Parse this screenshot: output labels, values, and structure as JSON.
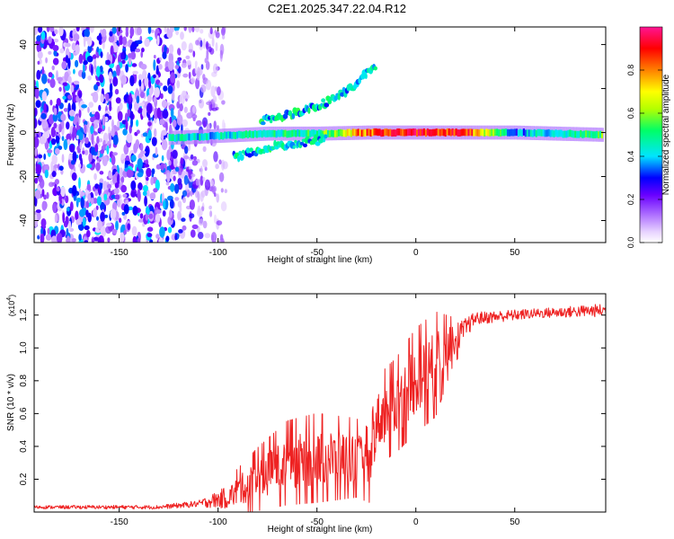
{
  "title": "C2E1.2025.347.22.04.R12",
  "chart_data": [
    {
      "type": "heatmap",
      "name": "spectrogram",
      "xlabel": "Height of straight line (km)",
      "ylabel": "Frequency (Hz)",
      "xlim": [
        -193,
        96
      ],
      "ylim": [
        -50,
        48
      ],
      "xticks": [
        -150,
        -100,
        -50,
        0,
        50
      ],
      "xtick_labels": [
        "-150",
        "-100",
        "-50",
        "0",
        "50"
      ],
      "yticks": [
        -40,
        -20,
        0,
        20,
        40
      ],
      "ytick_labels": [
        "-40",
        "-20",
        "0",
        "20",
        "40"
      ],
      "colorbar": {
        "label": "Normalized spectral amplitude",
        "range": [
          0,
          1
        ],
        "ticks": [
          0.0,
          0.2,
          0.4,
          0.6,
          0.8
        ],
        "tick_labels": [
          "0.0",
          "0.2",
          "0.4",
          "0.6",
          "0.8"
        ],
        "colormap": [
          "#ffffff",
          "#e7d2ff",
          "#b47aff",
          "#6a00ff",
          "#0000ff",
          "#00e5ff",
          "#00ff66",
          "#b4ff00",
          "#ffff00",
          "#ff8000",
          "#ff0000",
          "#ff1493"
        ]
      },
      "features": {
        "noise_region_km": [
          -193,
          -110
        ],
        "carrier_line": [
          {
            "x": -125,
            "f": -2.5,
            "amp": 0.45
          },
          {
            "x": -100,
            "f": -1.5,
            "amp": 0.42
          },
          {
            "x": -75,
            "f": -0.5,
            "amp": 0.45
          },
          {
            "x": -50,
            "f": -0.5,
            "amp": 0.5
          },
          {
            "x": -25,
            "f": 0,
            "amp": 0.8
          },
          {
            "x": 0,
            "f": 0,
            "amp": 0.9
          },
          {
            "x": 25,
            "f": 0,
            "amp": 0.85
          },
          {
            "x": 50,
            "f": 0,
            "amp": 0.35
          },
          {
            "x": 94,
            "f": -1,
            "amp": 0.55
          }
        ],
        "upper_branch": [
          {
            "x": -78,
            "f": 5
          },
          {
            "x": -60,
            "f": 9
          },
          {
            "x": -45,
            "f": 14
          },
          {
            "x": -33,
            "f": 20
          },
          {
            "x": -20,
            "f": 31
          }
        ],
        "lower_branch": [
          {
            "x": -92,
            "f": -11
          },
          {
            "x": -75,
            "f": -7
          },
          {
            "x": -60,
            "f": -5
          },
          {
            "x": -45,
            "f": -3
          }
        ]
      }
    },
    {
      "type": "line",
      "name": "snr",
      "xlabel": "Height of straight line (km)",
      "ylabel": "SNR (10 * v/v)",
      "multiplier_label": "(x10",
      "multiplier_exp": "4",
      "multiplier_close": ")",
      "xlim": [
        -193,
        96
      ],
      "ylim": [
        0,
        1.33
      ],
      "xticks": [
        -150,
        -100,
        -50,
        0,
        50
      ],
      "xtick_labels": [
        "-150",
        "-100",
        "-50",
        "0",
        "50"
      ],
      "yticks": [
        0.2,
        0.4,
        0.6,
        0.8,
        1.0,
        1.2
      ],
      "ytick_labels": [
        "0.2",
        "0.4",
        "0.6",
        "0.8",
        "1.0",
        "1.2"
      ],
      "series": [
        {
          "name": "SNR",
          "color": "#ee2222",
          "envelope": [
            {
              "x": -193,
              "base": 0.03,
              "noise": 0.01
            },
            {
              "x": -130,
              "base": 0.03,
              "noise": 0.012
            },
            {
              "x": -110,
              "base": 0.05,
              "noise": 0.02
            },
            {
              "x": -95,
              "base": 0.09,
              "noise": 0.07
            },
            {
              "x": -80,
              "base": 0.2,
              "noise": 0.12
            },
            {
              "x": -65,
              "base": 0.3,
              "noise": 0.16
            },
            {
              "x": -50,
              "base": 0.33,
              "noise": 0.17
            },
            {
              "x": -30,
              "base": 0.33,
              "noise": 0.15
            },
            {
              "x": -23,
              "base": 0.28,
              "noise": 0.14
            },
            {
              "x": -20,
              "base": 0.55,
              "noise": 0.17
            },
            {
              "x": -10,
              "base": 0.65,
              "noise": 0.18
            },
            {
              "x": 0,
              "base": 0.8,
              "noise": 0.2
            },
            {
              "x": 10,
              "base": 0.9,
              "noise": 0.2
            },
            {
              "x": 18,
              "base": 1.03,
              "noise": 0.1
            },
            {
              "x": 30,
              "base": 1.18,
              "noise": 0.04
            },
            {
              "x": 60,
              "base": 1.21,
              "noise": 0.03
            },
            {
              "x": 96,
              "base": 1.23,
              "noise": 0.04
            }
          ]
        }
      ]
    }
  ]
}
